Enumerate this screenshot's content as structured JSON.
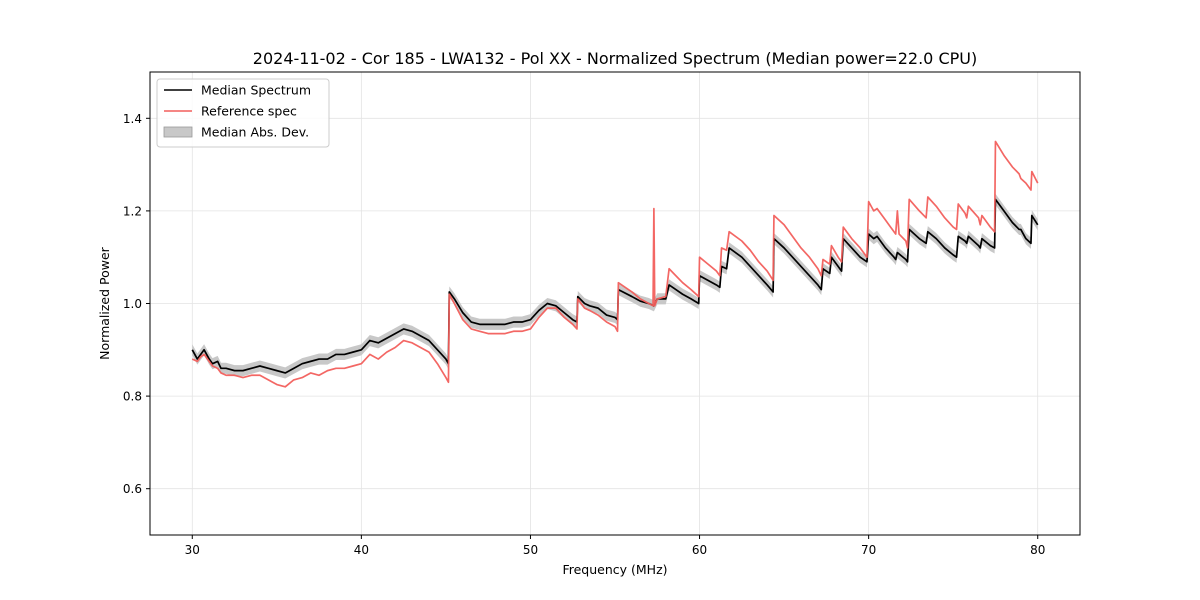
{
  "chart_data": {
    "type": "line",
    "title": "2024-11-02 - Cor 185 - LWA132 - Pol XX - Normalized Spectrum (Median power=22.0 CPU)",
    "xlabel": "Frequency (MHz)",
    "ylabel": "Normalized Power",
    "xlim": [
      27.5,
      82.5
    ],
    "ylim": [
      0.5,
      1.5
    ],
    "xticks": [
      30,
      40,
      50,
      60,
      70,
      80
    ],
    "yticks": [
      0.6,
      0.8,
      1.0,
      1.2,
      1.4
    ],
    "xtick_labels": [
      "30",
      "40",
      "50",
      "60",
      "70",
      "80"
    ],
    "ytick_labels": [
      "0.6",
      "0.8",
      "1.0",
      "1.2",
      "1.4"
    ],
    "grid": true,
    "legend_position": "top-left",
    "mad_band": 0.012,
    "series": [
      {
        "name": "Median Spectrum",
        "color": "#000000",
        "points": [
          [
            30.0,
            0.9
          ],
          [
            30.3,
            0.88
          ],
          [
            30.5,
            0.89
          ],
          [
            30.7,
            0.9
          ],
          [
            31.0,
            0.88
          ],
          [
            31.2,
            0.87
          ],
          [
            31.5,
            0.875
          ],
          [
            31.7,
            0.86
          ],
          [
            32.0,
            0.86
          ],
          [
            32.5,
            0.855
          ],
          [
            33.0,
            0.855
          ],
          [
            33.5,
            0.86
          ],
          [
            34.0,
            0.865
          ],
          [
            34.5,
            0.86
          ],
          [
            35.0,
            0.855
          ],
          [
            35.5,
            0.85
          ],
          [
            36.0,
            0.86
          ],
          [
            36.5,
            0.87
          ],
          [
            37.0,
            0.875
          ],
          [
            37.5,
            0.88
          ],
          [
            38.0,
            0.88
          ],
          [
            38.5,
            0.89
          ],
          [
            39.0,
            0.89
          ],
          [
            39.5,
            0.895
          ],
          [
            40.0,
            0.9
          ],
          [
            40.5,
            0.92
          ],
          [
            41.0,
            0.915
          ],
          [
            41.5,
            0.925
          ],
          [
            42.0,
            0.935
          ],
          [
            42.5,
            0.945
          ],
          [
            43.0,
            0.94
          ],
          [
            43.5,
            0.93
          ],
          [
            44.0,
            0.92
          ],
          [
            44.5,
            0.9
          ],
          [
            45.0,
            0.88
          ],
          [
            45.15,
            0.87
          ],
          [
            45.2,
            1.025
          ],
          [
            45.5,
            1.01
          ],
          [
            46.0,
            0.98
          ],
          [
            46.5,
            0.96
          ],
          [
            47.0,
            0.955
          ],
          [
            47.5,
            0.955
          ],
          [
            48.0,
            0.955
          ],
          [
            48.5,
            0.955
          ],
          [
            49.0,
            0.96
          ],
          [
            49.5,
            0.96
          ],
          [
            50.0,
            0.965
          ],
          [
            50.5,
            0.985
          ],
          [
            51.0,
            1.0
          ],
          [
            51.5,
            0.995
          ],
          [
            52.0,
            0.98
          ],
          [
            52.5,
            0.965
          ],
          [
            52.75,
            0.96
          ],
          [
            52.8,
            1.015
          ],
          [
            53.2,
            1.0
          ],
          [
            53.5,
            0.995
          ],
          [
            54.0,
            0.99
          ],
          [
            54.5,
            0.975
          ],
          [
            55.0,
            0.97
          ],
          [
            55.15,
            0.965
          ],
          [
            55.2,
            1.03
          ],
          [
            56.0,
            1.015
          ],
          [
            56.5,
            1.005
          ],
          [
            57.0,
            1.0
          ],
          [
            57.3,
            0.995
          ],
          [
            57.5,
            1.01
          ],
          [
            58.0,
            1.01
          ],
          [
            58.2,
            1.04
          ],
          [
            58.6,
            1.03
          ],
          [
            59.0,
            1.02
          ],
          [
            59.5,
            1.01
          ],
          [
            59.95,
            1.0
          ],
          [
            60.0,
            1.06
          ],
          [
            60.5,
            1.05
          ],
          [
            61.0,
            1.04
          ],
          [
            61.2,
            1.035
          ],
          [
            61.3,
            1.08
          ],
          [
            61.6,
            1.075
          ],
          [
            61.75,
            1.12
          ],
          [
            62.5,
            1.1
          ],
          [
            63.0,
            1.08
          ],
          [
            63.5,
            1.06
          ],
          [
            64.0,
            1.04
          ],
          [
            64.35,
            1.025
          ],
          [
            64.4,
            1.14
          ],
          [
            65.0,
            1.12
          ],
          [
            65.5,
            1.1
          ],
          [
            66.0,
            1.08
          ],
          [
            66.5,
            1.06
          ],
          [
            67.0,
            1.04
          ],
          [
            67.2,
            1.03
          ],
          [
            67.3,
            1.075
          ],
          [
            67.7,
            1.065
          ],
          [
            67.8,
            1.1
          ],
          [
            68.2,
            1.08
          ],
          [
            68.4,
            1.07
          ],
          [
            68.5,
            1.14
          ],
          [
            69.0,
            1.12
          ],
          [
            69.5,
            1.1
          ],
          [
            69.9,
            1.09
          ],
          [
            70.0,
            1.15
          ],
          [
            70.3,
            1.14
          ],
          [
            70.5,
            1.145
          ],
          [
            71.0,
            1.12
          ],
          [
            71.5,
            1.1
          ],
          [
            71.6,
            1.095
          ],
          [
            71.7,
            1.11
          ],
          [
            72.2,
            1.095
          ],
          [
            72.3,
            1.09
          ],
          [
            72.4,
            1.16
          ],
          [
            73.0,
            1.14
          ],
          [
            73.4,
            1.13
          ],
          [
            73.5,
            1.155
          ],
          [
            74.0,
            1.14
          ],
          [
            74.5,
            1.12
          ],
          [
            75.0,
            1.105
          ],
          [
            75.2,
            1.1
          ],
          [
            75.3,
            1.145
          ],
          [
            75.7,
            1.135
          ],
          [
            75.8,
            1.13
          ],
          [
            75.9,
            1.145
          ],
          [
            76.5,
            1.125
          ],
          [
            76.6,
            1.12
          ],
          [
            76.7,
            1.14
          ],
          [
            77.2,
            1.125
          ],
          [
            77.45,
            1.12
          ],
          [
            77.5,
            1.225
          ],
          [
            78.0,
            1.2
          ],
          [
            78.5,
            1.175
          ],
          [
            78.9,
            1.16
          ],
          [
            79.0,
            1.16
          ],
          [
            79.3,
            1.14
          ],
          [
            79.6,
            1.13
          ],
          [
            79.65,
            1.19
          ],
          [
            80.0,
            1.17
          ]
        ]
      },
      {
        "name": "Reference spec",
        "color": "#f25f5c",
        "points": [
          [
            30.0,
            0.88
          ],
          [
            30.3,
            0.875
          ],
          [
            30.5,
            0.885
          ],
          [
            30.7,
            0.89
          ],
          [
            31.0,
            0.875
          ],
          [
            31.2,
            0.865
          ],
          [
            31.5,
            0.86
          ],
          [
            31.7,
            0.85
          ],
          [
            32.0,
            0.845
          ],
          [
            32.5,
            0.845
          ],
          [
            33.0,
            0.84
          ],
          [
            33.5,
            0.845
          ],
          [
            34.0,
            0.845
          ],
          [
            34.5,
            0.835
          ],
          [
            35.0,
            0.825
          ],
          [
            35.5,
            0.82
          ],
          [
            36.0,
            0.835
          ],
          [
            36.5,
            0.84
          ],
          [
            37.0,
            0.85
          ],
          [
            37.5,
            0.845
          ],
          [
            38.0,
            0.855
          ],
          [
            38.5,
            0.86
          ],
          [
            39.0,
            0.86
          ],
          [
            39.5,
            0.865
          ],
          [
            40.0,
            0.87
          ],
          [
            40.5,
            0.89
          ],
          [
            41.0,
            0.88
          ],
          [
            41.5,
            0.895
          ],
          [
            42.0,
            0.905
          ],
          [
            42.5,
            0.92
          ],
          [
            43.0,
            0.915
          ],
          [
            43.5,
            0.905
          ],
          [
            44.0,
            0.895
          ],
          [
            44.5,
            0.87
          ],
          [
            45.0,
            0.84
          ],
          [
            45.15,
            0.83
          ],
          [
            45.2,
            1.02
          ],
          [
            45.5,
            1.0
          ],
          [
            46.0,
            0.965
          ],
          [
            46.5,
            0.945
          ],
          [
            47.0,
            0.94
          ],
          [
            47.5,
            0.935
          ],
          [
            48.0,
            0.935
          ],
          [
            48.5,
            0.935
          ],
          [
            49.0,
            0.94
          ],
          [
            49.5,
            0.94
          ],
          [
            50.0,
            0.945
          ],
          [
            50.5,
            0.97
          ],
          [
            51.0,
            0.99
          ],
          [
            51.5,
            0.99
          ],
          [
            52.0,
            0.97
          ],
          [
            52.5,
            0.955
          ],
          [
            52.75,
            0.945
          ],
          [
            52.8,
            1.01
          ],
          [
            53.2,
            0.99
          ],
          [
            53.5,
            0.985
          ],
          [
            54.0,
            0.975
          ],
          [
            54.5,
            0.96
          ],
          [
            55.0,
            0.95
          ],
          [
            55.15,
            0.94
          ],
          [
            55.2,
            1.045
          ],
          [
            56.0,
            1.025
          ],
          [
            56.5,
            1.01
          ],
          [
            57.0,
            1.0
          ],
          [
            57.25,
            0.995
          ],
          [
            57.3,
            1.205
          ],
          [
            57.35,
            0.995
          ],
          [
            57.5,
            1.01
          ],
          [
            58.0,
            1.015
          ],
          [
            58.2,
            1.075
          ],
          [
            58.6,
            1.06
          ],
          [
            59.0,
            1.045
          ],
          [
            59.5,
            1.03
          ],
          [
            59.95,
            1.015
          ],
          [
            60.0,
            1.1
          ],
          [
            60.5,
            1.085
          ],
          [
            61.0,
            1.07
          ],
          [
            61.2,
            1.06
          ],
          [
            61.3,
            1.12
          ],
          [
            61.6,
            1.115
          ],
          [
            61.75,
            1.155
          ],
          [
            62.5,
            1.135
          ],
          [
            63.0,
            1.115
          ],
          [
            63.5,
            1.09
          ],
          [
            64.0,
            1.07
          ],
          [
            64.35,
            1.05
          ],
          [
            64.4,
            1.19
          ],
          [
            65.0,
            1.17
          ],
          [
            65.5,
            1.145
          ],
          [
            66.0,
            1.12
          ],
          [
            66.5,
            1.1
          ],
          [
            67.0,
            1.075
          ],
          [
            67.2,
            1.06
          ],
          [
            67.3,
            1.095
          ],
          [
            67.7,
            1.085
          ],
          [
            67.8,
            1.125
          ],
          [
            68.2,
            1.1
          ],
          [
            68.4,
            1.09
          ],
          [
            68.5,
            1.165
          ],
          [
            69.0,
            1.14
          ],
          [
            69.5,
            1.12
          ],
          [
            69.9,
            1.1
          ],
          [
            70.0,
            1.22
          ],
          [
            70.3,
            1.2
          ],
          [
            70.5,
            1.205
          ],
          [
            71.0,
            1.18
          ],
          [
            71.5,
            1.155
          ],
          [
            71.6,
            1.15
          ],
          [
            71.7,
            1.2
          ],
          [
            71.8,
            1.15
          ],
          [
            72.2,
            1.135
          ],
          [
            72.3,
            1.12
          ],
          [
            72.4,
            1.225
          ],
          [
            73.0,
            1.2
          ],
          [
            73.4,
            1.185
          ],
          [
            73.5,
            1.23
          ],
          [
            74.0,
            1.21
          ],
          [
            74.5,
            1.185
          ],
          [
            75.0,
            1.165
          ],
          [
            75.2,
            1.16
          ],
          [
            75.3,
            1.215
          ],
          [
            75.7,
            1.195
          ],
          [
            75.8,
            1.185
          ],
          [
            75.9,
            1.21
          ],
          [
            76.5,
            1.185
          ],
          [
            76.6,
            1.17
          ],
          [
            76.7,
            1.19
          ],
          [
            77.2,
            1.165
          ],
          [
            77.45,
            1.155
          ],
          [
            77.5,
            1.35
          ],
          [
            78.0,
            1.32
          ],
          [
            78.5,
            1.295
          ],
          [
            78.9,
            1.28
          ],
          [
            79.0,
            1.27
          ],
          [
            79.3,
            1.26
          ],
          [
            79.6,
            1.245
          ],
          [
            79.65,
            1.285
          ],
          [
            80.0,
            1.26
          ]
        ]
      }
    ],
    "legend": [
      {
        "label": "Median Spectrum",
        "kind": "line",
        "color": "#000000"
      },
      {
        "label": "Reference spec",
        "kind": "line",
        "color": "#f25f5c"
      },
      {
        "label": "Median Abs. Dev.",
        "kind": "patch",
        "color": "#c8c8c8"
      }
    ]
  }
}
